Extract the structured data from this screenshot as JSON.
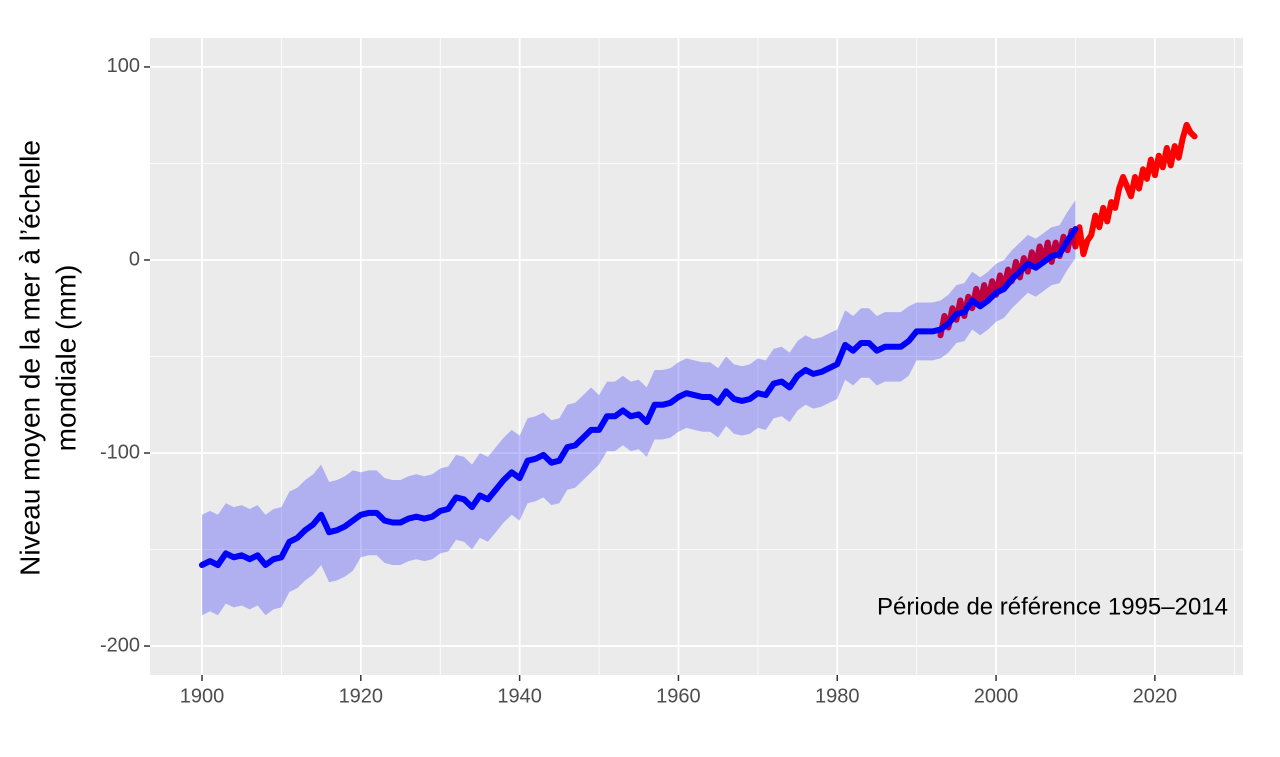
{
  "chart_data": {
    "type": "line",
    "ylabel": [
      "Niveau moyen de la mer à l’échelle",
      "mondiale (mm)"
    ],
    "annotation": "Période de référence 1995–2014",
    "xlim": [
      1893.45,
      2031.1
    ],
    "xticks": [
      1900,
      1920,
      1940,
      1960,
      1980,
      2000,
      2020
    ],
    "ylim": [
      -215,
      115
    ],
    "yticks": [
      100,
      0,
      -100,
      -200
    ],
    "grid": true,
    "band": {
      "color": "#0000ff",
      "opacity": 0.25,
      "x": [
        1900,
        1901,
        1902,
        1903,
        1904,
        1905,
        1906,
        1907,
        1908,
        1909,
        1910,
        1911,
        1912,
        1913,
        1914,
        1915,
        1916,
        1917,
        1918,
        1919,
        1920,
        1921,
        1922,
        1923,
        1924,
        1925,
        1926,
        1927,
        1928,
        1929,
        1930,
        1931,
        1932,
        1933,
        1934,
        1935,
        1936,
        1937,
        1938,
        1939,
        1940,
        1941,
        1942,
        1943,
        1944,
        1945,
        1946,
        1947,
        1948,
        1949,
        1950,
        1951,
        1952,
        1953,
        1954,
        1955,
        1956,
        1957,
        1958,
        1959,
        1960,
        1961,
        1962,
        1963,
        1964,
        1965,
        1966,
        1967,
        1968,
        1969,
        1970,
        1971,
        1972,
        1973,
        1974,
        1975,
        1976,
        1977,
        1978,
        1979,
        1980,
        1981,
        1982,
        1983,
        1984,
        1985,
        1986,
        1987,
        1988,
        1989,
        1990,
        1991,
        1992,
        1993,
        1994,
        1995,
        1996,
        1997,
        1998,
        1999,
        2000,
        2001,
        2002,
        2003,
        2004,
        2005,
        2006,
        2007,
        2008,
        2009,
        2010
      ],
      "upper": [
        -132,
        -130,
        -132,
        -126,
        -128,
        -127,
        -129,
        -127,
        -132,
        -129,
        -128,
        -120,
        -118,
        -114,
        -111,
        -106,
        -115,
        -114,
        -112,
        -109,
        -110,
        -109,
        -109,
        -113,
        -114,
        -114,
        -112,
        -111,
        -112,
        -111,
        -108,
        -107,
        -101,
        -102,
        -106,
        -100,
        -102,
        -97,
        -92,
        -88,
        -91,
        -82,
        -81,
        -79,
        -83,
        -82,
        -75,
        -74,
        -70,
        -66,
        -70,
        -63,
        -63,
        -60,
        -63,
        -62,
        -66,
        -57,
        -57,
        -56,
        -53,
        -51,
        -52,
        -53,
        -53,
        -56,
        -50,
        -54,
        -55,
        -54,
        -51,
        -52,
        -46,
        -45,
        -48,
        -42,
        -39,
        -41,
        -40,
        -38,
        -36,
        -26,
        -29,
        -25,
        -25,
        -29,
        -27,
        -27,
        -27,
        -24,
        -22,
        -22,
        -22,
        -21,
        -18,
        -13,
        -12,
        -6,
        -9,
        -6,
        -2,
        0,
        5,
        9,
        13,
        11,
        14,
        17,
        18,
        25,
        31
      ],
      "lower": [
        -184,
        -182,
        -184,
        -178,
        -180,
        -179,
        -181,
        -179,
        -184,
        -181,
        -180,
        -172,
        -170,
        -166,
        -163,
        -158,
        -167,
        -166,
        -164,
        -161,
        -154,
        -153,
        -153,
        -157,
        -158,
        -158,
        -156,
        -155,
        -156,
        -155,
        -152,
        -151,
        -145,
        -146,
        -150,
        -144,
        -146,
        -141,
        -136,
        -132,
        -135,
        -126,
        -125,
        -123,
        -127,
        -126,
        -119,
        -118,
        -114,
        -110,
        -106,
        -99,
        -99,
        -96,
        -99,
        -98,
        -102,
        -93,
        -93,
        -92,
        -89,
        -87,
        -88,
        -89,
        -89,
        -92,
        -86,
        -90,
        -91,
        -90,
        -87,
        -88,
        -82,
        -81,
        -84,
        -78,
        -75,
        -77,
        -76,
        -74,
        -72,
        -62,
        -65,
        -61,
        -61,
        -65,
        -63,
        -63,
        -63,
        -60,
        -52,
        -52,
        -52,
        -51,
        -48,
        -43,
        -42,
        -36,
        -39,
        -36,
        -32,
        -30,
        -25,
        -21,
        -17,
        -19,
        -16,
        -13,
        -12,
        -5,
        1
      ]
    },
    "series": [
      {
        "color": "#ff0000",
        "x": [
          1993,
          1993.5,
          1994,
          1994.5,
          1995,
          1995.5,
          1996,
          1996.5,
          1997,
          1997.5,
          1998,
          1998.5,
          1999,
          1999.5,
          2000,
          2000.5,
          2001,
          2001.5,
          2002,
          2002.5,
          2003,
          2003.5,
          2004,
          2004.5,
          2005,
          2005.5,
          2006,
          2006.5,
          2007,
          2007.5,
          2008,
          2008.5,
          2009,
          2009.5,
          2010,
          2010.5,
          2011,
          2011.5,
          2012,
          2012.5,
          2013,
          2013.5,
          2014,
          2014.5,
          2015,
          2015.5,
          2016,
          2016.5,
          2017,
          2017.5,
          2018,
          2018.5,
          2019,
          2019.5,
          2020,
          2020.5,
          2021,
          2021.5,
          2022,
          2022.5,
          2023,
          2023.5,
          2024,
          2024.5,
          2025
        ],
        "values": [
          -39,
          -29,
          -35,
          -25,
          -31,
          -21,
          -29,
          -19,
          -25,
          -15,
          -23,
          -13,
          -21,
          -11,
          -18,
          -8,
          -15,
          -5,
          -11,
          -1,
          -9,
          1,
          -6,
          4,
          -3,
          7,
          -1,
          9,
          -1,
          9,
          2,
          12,
          5,
          15,
          7,
          17,
          3,
          10,
          13,
          23,
          17,
          27,
          20,
          30,
          27,
          37,
          43,
          38,
          33,
          43,
          37,
          47,
          42,
          52,
          44,
          54,
          48,
          58,
          49,
          59,
          53,
          63,
          70,
          66,
          64
        ]
      },
      {
        "color": "#0000ff",
        "x": [
          1900,
          1901,
          1902,
          1903,
          1904,
          1905,
          1906,
          1907,
          1908,
          1909,
          1910,
          1911,
          1912,
          1913,
          1914,
          1915,
          1916,
          1917,
          1918,
          1919,
          1920,
          1921,
          1922,
          1923,
          1924,
          1925,
          1926,
          1927,
          1928,
          1929,
          1930,
          1931,
          1932,
          1933,
          1934,
          1935,
          1936,
          1937,
          1938,
          1939,
          1940,
          1941,
          1942,
          1943,
          1944,
          1945,
          1946,
          1947,
          1948,
          1949,
          1950,
          1951,
          1952,
          1953,
          1954,
          1955,
          1956,
          1957,
          1958,
          1959,
          1960,
          1961,
          1962,
          1963,
          1964,
          1965,
          1966,
          1967,
          1968,
          1969,
          1970,
          1971,
          1972,
          1973,
          1974,
          1975,
          1976,
          1977,
          1978,
          1979,
          1980,
          1981,
          1982,
          1983,
          1984,
          1985,
          1986,
          1987,
          1988,
          1989,
          1990,
          1991,
          1992,
          1993,
          1994,
          1995,
          1996,
          1997,
          1998,
          1999,
          2000,
          2001,
          2002,
          2003,
          2004,
          2005,
          2006,
          2007,
          2008,
          2009,
          2010
        ],
        "values": [
          -158,
          -156,
          -158,
          -152,
          -154,
          -153,
          -155,
          -153,
          -158,
          -155,
          -154,
          -146,
          -144,
          -140,
          -137,
          -132,
          -141,
          -140,
          -138,
          -135,
          -132,
          -131,
          -131,
          -135,
          -136,
          -136,
          -134,
          -133,
          -134,
          -133,
          -130,
          -129,
          -123,
          -124,
          -128,
          -122,
          -124,
          -119,
          -114,
          -110,
          -113,
          -104,
          -103,
          -101,
          -105,
          -104,
          -97,
          -96,
          -92,
          -88,
          -88,
          -81,
          -81,
          -78,
          -81,
          -80,
          -84,
          -75,
          -75,
          -74,
          -71,
          -69,
          -70,
          -71,
          -71,
          -74,
          -68,
          -72,
          -73,
          -72,
          -69,
          -70,
          -64,
          -63,
          -66,
          -60,
          -57,
          -59,
          -58,
          -56,
          -54,
          -44,
          -47,
          -43,
          -43,
          -47,
          -45,
          -45,
          -45,
          -42,
          -37,
          -37,
          -37,
          -36,
          -33,
          -28,
          -27,
          -21,
          -24,
          -21,
          -17,
          -15,
          -10,
          -6,
          -2,
          -4,
          -1,
          2,
          3,
          10,
          16
        ]
      }
    ]
  }
}
